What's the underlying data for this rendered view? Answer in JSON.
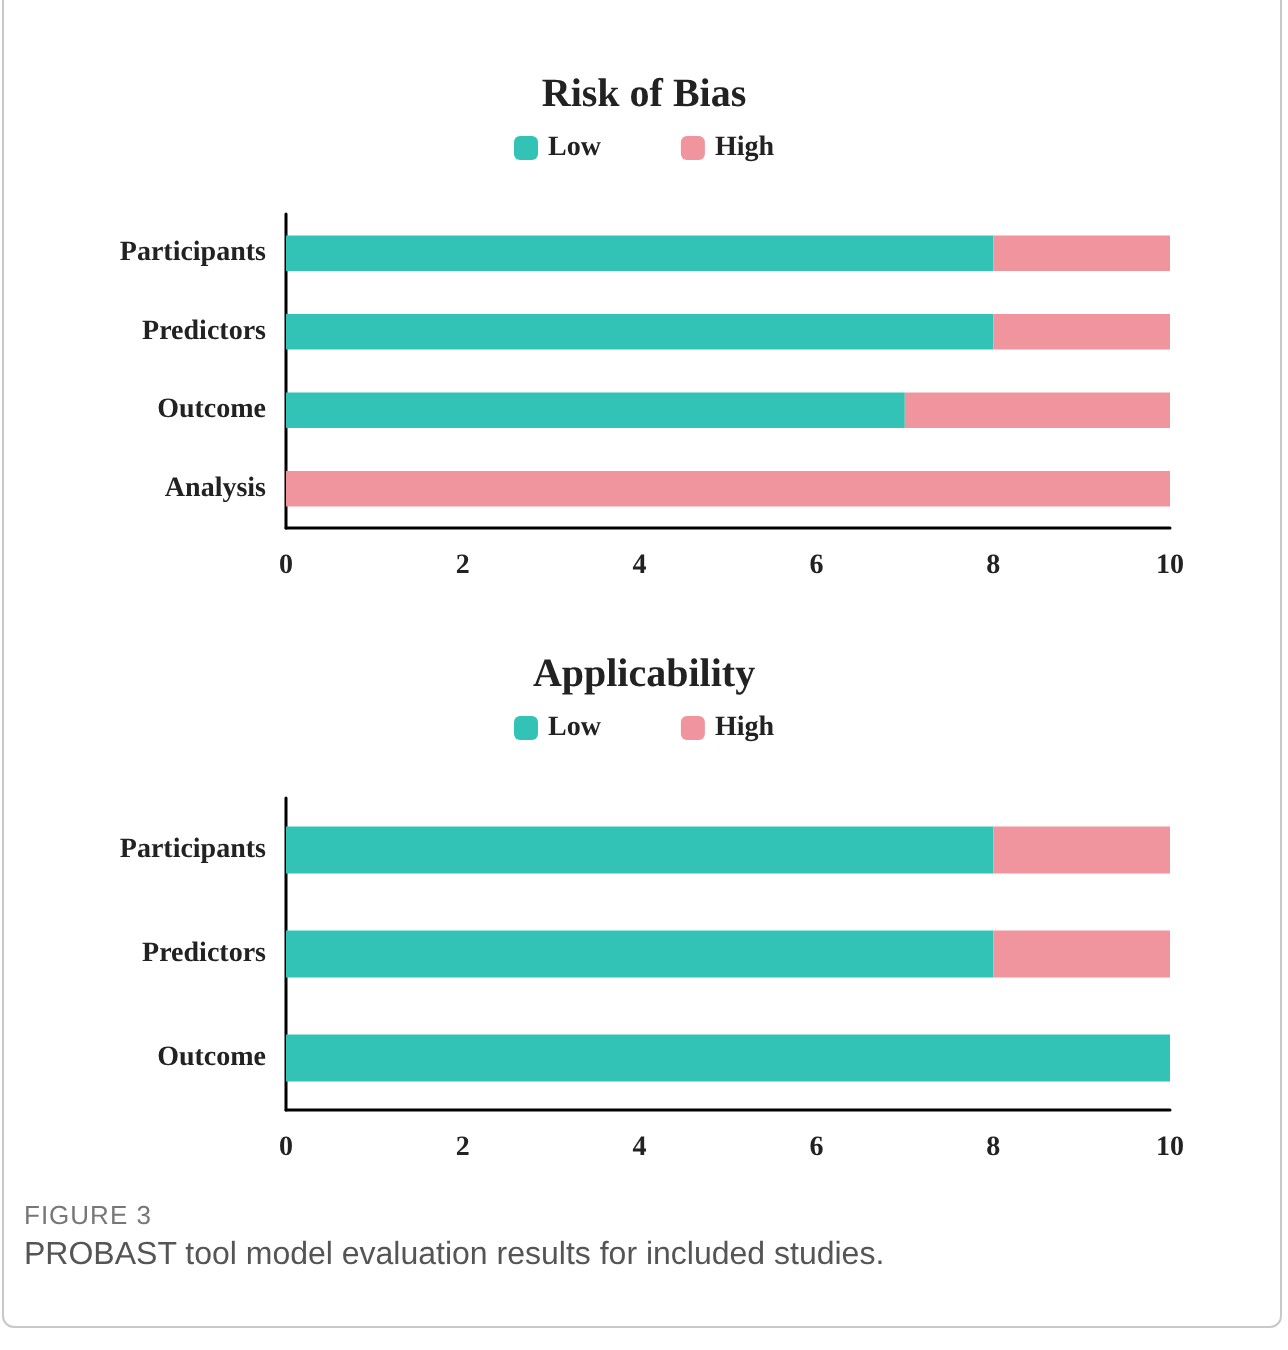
{
  "chart_data": [
    {
      "type": "bar",
      "title": "Risk of Bias",
      "orientation": "horizontal",
      "stacked": true,
      "legend": "top",
      "grid": false,
      "categories": [
        "Participants",
        "Predictors",
        "Outcome",
        "Analysis"
      ],
      "series": [
        {
          "name": "Low",
          "color": "#33c3b6",
          "values": [
            8,
            8,
            7,
            0
          ]
        },
        {
          "name": "High",
          "color": "#f0959e",
          "values": [
            2,
            2,
            3,
            10
          ]
        }
      ],
      "xlim": [
        0,
        10
      ],
      "xticks": [
        0,
        2,
        4,
        6,
        8,
        10
      ]
    },
    {
      "type": "bar",
      "title": "Applicability",
      "orientation": "horizontal",
      "stacked": true,
      "legend": "top",
      "grid": false,
      "categories": [
        "Participants",
        "Predictors",
        "Outcome"
      ],
      "series": [
        {
          "name": "Low",
          "color": "#33c3b6",
          "values": [
            8,
            8,
            10
          ]
        },
        {
          "name": "High",
          "color": "#f0959e",
          "values": [
            2,
            2,
            0
          ]
        }
      ],
      "xlim": [
        0,
        10
      ],
      "xticks": [
        0,
        2,
        4,
        6,
        8,
        10
      ],
      "annotations": [
        "FIGURE 3",
        "PROBAST tool model evaluation results for included studies."
      ]
    }
  ]
}
